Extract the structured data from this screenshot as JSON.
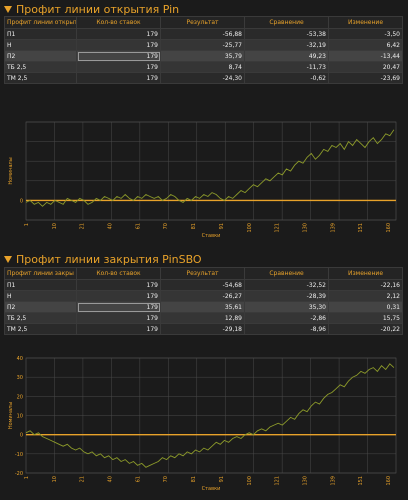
{
  "section1": {
    "title": "Профит линии открытия Pin",
    "table": {
      "headers": [
        "Профит линии открыт",
        "Кол-во ставок",
        "Результат",
        "Сравнение",
        "Изменение"
      ],
      "rows": [
        {
          "name": "П1",
          "count": "179",
          "result": "-56,88",
          "compare": "-53,38",
          "change": "-3,50"
        },
        {
          "name": "Н",
          "count": "179",
          "result": "-25,77",
          "compare": "-32,19",
          "change": "6,42"
        },
        {
          "name": "П2",
          "count": "179",
          "result": "35,79",
          "compare": "49,23",
          "change": "-13,44"
        },
        {
          "name": "ТБ 2,5",
          "count": "179",
          "result": "8,74",
          "compare": "-11,73",
          "change": "20,47"
        },
        {
          "name": "ТМ 2,5",
          "count": "179",
          "result": "-24,30",
          "compare": "-0,62",
          "change": "-23,69"
        }
      ]
    },
    "chart_data": {
      "type": "line",
      "title": "",
      "xlabel": "Ставки",
      "ylabel": "Номиналы",
      "xticks": [
        "1",
        "10",
        "21",
        "40",
        "61",
        "70",
        "81",
        "91",
        "100",
        "121",
        "130",
        "139",
        "151",
        "160"
      ],
      "yticks": [
        "0"
      ],
      "ylim": [
        -10,
        40
      ],
      "zero_line_color": "#e8a22a",
      "series_color": "#8c9a2a",
      "x": [
        1,
        3,
        5,
        7,
        9,
        11,
        13,
        15,
        17,
        19,
        21,
        23,
        25,
        27,
        29,
        31,
        33,
        35,
        37,
        39,
        41,
        43,
        45,
        47,
        49,
        51,
        53,
        55,
        57,
        59,
        61,
        63,
        65,
        67,
        69,
        71,
        73,
        75,
        77,
        79,
        81,
        83,
        85,
        87,
        89,
        91,
        93,
        95,
        97,
        99,
        101,
        103,
        105,
        107,
        109,
        111,
        113,
        115,
        117,
        119,
        121,
        123,
        125,
        127,
        129,
        131,
        133,
        135,
        137,
        139,
        141,
        143,
        145,
        147,
        149,
        151,
        153,
        155,
        157,
        159,
        161,
        163,
        165,
        167,
        169,
        171,
        173,
        175,
        177,
        179
      ],
      "values": [
        -1,
        0,
        -2,
        -1,
        -3,
        -1,
        -2,
        0,
        -1,
        -2,
        1,
        0,
        -1,
        1,
        0,
        -2,
        -1,
        1,
        0,
        2,
        1,
        0,
        2,
        1,
        3,
        1,
        0,
        2,
        1,
        3,
        2,
        1,
        2,
        0,
        1,
        3,
        2,
        0,
        -1,
        1,
        0,
        2,
        1,
        3,
        2,
        4,
        3,
        1,
        0,
        2,
        1,
        3,
        5,
        4,
        6,
        8,
        7,
        9,
        11,
        10,
        12,
        14,
        13,
        16,
        15,
        18,
        20,
        19,
        22,
        24,
        21,
        23,
        26,
        25,
        28,
        27,
        29,
        26,
        30,
        28,
        31,
        29,
        27,
        30,
        32,
        29,
        31,
        34,
        33,
        36
      ]
    }
  },
  "section2": {
    "title": "Профит линии закрытия PinSBO",
    "table": {
      "headers": [
        "Профит линии закры",
        "Кол-во ставок",
        "Результат",
        "Сравнение",
        "Изменение"
      ],
      "rows": [
        {
          "name": "П1",
          "count": "179",
          "result": "-54,68",
          "compare": "-32,52",
          "change": "-22,16"
        },
        {
          "name": "Н",
          "count": "179",
          "result": "-26,27",
          "compare": "-28,39",
          "change": "2,12"
        },
        {
          "name": "П2",
          "count": "179",
          "result": "35,61",
          "compare": "35,30",
          "change": "0,31"
        },
        {
          "name": "ТБ 2,5",
          "count": "179",
          "result": "12,89",
          "compare": "-2,86",
          "change": "15,75"
        },
        {
          "name": "ТМ 2,5",
          "count": "179",
          "result": "-29,18",
          "compare": "-8,96",
          "change": "-20,22"
        }
      ]
    },
    "chart_data": {
      "type": "line",
      "title": "",
      "xlabel": "Ставки",
      "ylabel": "Номиналы",
      "xticks": [
        "1",
        "10",
        "21",
        "40",
        "61",
        "70",
        "81",
        "91",
        "100",
        "121",
        "130",
        "139",
        "151",
        "160"
      ],
      "yticks": [
        "40",
        "30",
        "20",
        "10",
        "0",
        "-10",
        "-20"
      ],
      "ylim": [
        -20,
        40
      ],
      "zero_line_color": "#e8a22a",
      "series_color": "#8c9a2a",
      "x": [
        1,
        3,
        5,
        7,
        9,
        11,
        13,
        15,
        17,
        19,
        21,
        23,
        25,
        27,
        29,
        31,
        33,
        35,
        37,
        39,
        41,
        43,
        45,
        47,
        49,
        51,
        53,
        55,
        57,
        59,
        61,
        63,
        65,
        67,
        69,
        71,
        73,
        75,
        77,
        79,
        81,
        83,
        85,
        87,
        89,
        91,
        93,
        95,
        97,
        99,
        101,
        103,
        105,
        107,
        109,
        111,
        113,
        115,
        117,
        119,
        121,
        123,
        125,
        127,
        129,
        131,
        133,
        135,
        137,
        139,
        141,
        143,
        145,
        147,
        149,
        151,
        153,
        155,
        157,
        159,
        161,
        163,
        165,
        167,
        169,
        171,
        173,
        175,
        177,
        179
      ],
      "values": [
        1,
        2,
        0,
        1,
        -1,
        -2,
        -3,
        -4,
        -5,
        -6,
        -5,
        -7,
        -8,
        -7,
        -9,
        -10,
        -9,
        -11,
        -10,
        -12,
        -11,
        -13,
        -12,
        -14,
        -13,
        -15,
        -14,
        -16,
        -15,
        -17,
        -16,
        -15,
        -14,
        -12,
        -13,
        -11,
        -12,
        -10,
        -11,
        -9,
        -10,
        -8,
        -9,
        -7,
        -8,
        -6,
        -4,
        -5,
        -3,
        -4,
        -2,
        -1,
        -2,
        0,
        1,
        0,
        2,
        3,
        2,
        4,
        5,
        6,
        5,
        7,
        9,
        8,
        11,
        13,
        12,
        15,
        17,
        16,
        19,
        21,
        22,
        24,
        26,
        25,
        28,
        30,
        31,
        33,
        32,
        34,
        35,
        33,
        36,
        34,
        37,
        35
      ]
    }
  }
}
